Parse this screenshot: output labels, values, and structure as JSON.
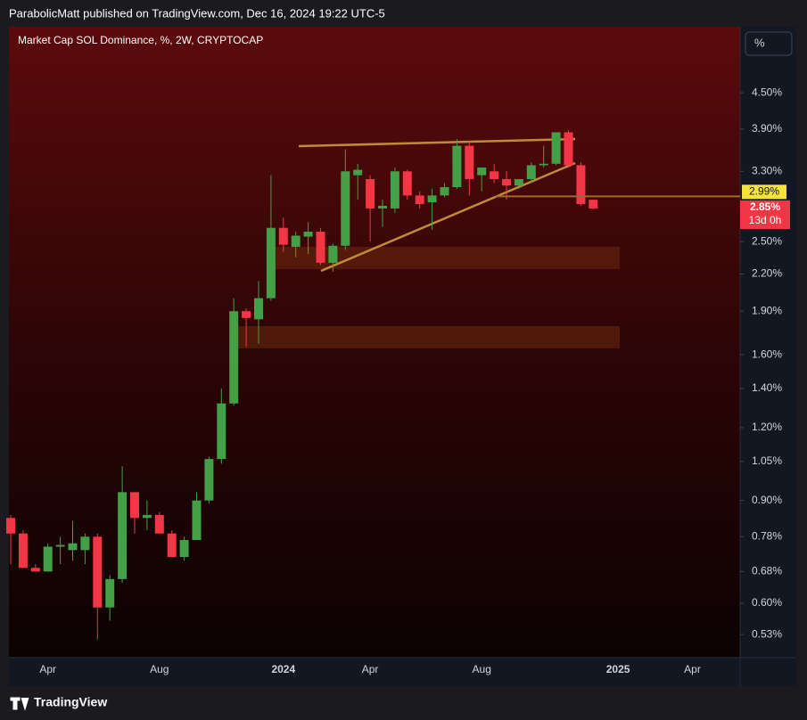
{
  "header": {
    "text": "ParabolicMatt published on TradingView.com, Dec 16, 2024 19:22 UTC-5"
  },
  "toolbar": {
    "scale_button": "%"
  },
  "footer": {
    "brand": "TradingView"
  },
  "chart_data": {
    "type": "candlestick",
    "title": "Market Cap SOL Dominance, %, 2W, CRYPTOCAP",
    "log_scale": true,
    "up_color": "#43a047",
    "down_color": "#f23645",
    "ylim": [
      0.484,
      5.84
    ],
    "yticks": [
      {
        "value": 0.53,
        "label": "0.53%"
      },
      {
        "value": 0.6,
        "label": "0.60%"
      },
      {
        "value": 0.68,
        "label": "0.68%"
      },
      {
        "value": 0.78,
        "label": "0.78%"
      },
      {
        "value": 0.9,
        "label": "0.90%"
      },
      {
        "value": 1.05,
        "label": "1.05%"
      },
      {
        "value": 1.2,
        "label": "1.20%"
      },
      {
        "value": 1.4,
        "label": "1.40%"
      },
      {
        "value": 1.6,
        "label": "1.60%"
      },
      {
        "value": 1.9,
        "label": "1.90%"
      },
      {
        "value": 2.2,
        "label": "2.20%"
      },
      {
        "value": 2.5,
        "label": "2.50%"
      },
      {
        "value": 3.3,
        "label": "3.30%"
      },
      {
        "value": 3.9,
        "label": "3.90%"
      },
      {
        "value": 4.5,
        "label": "4.50%"
      }
    ],
    "categories": [
      null,
      null,
      null,
      "Apr",
      null,
      null,
      null,
      null,
      null,
      null,
      null,
      null,
      "Aug",
      null,
      null,
      null,
      null,
      null,
      null,
      null,
      null,
      null,
      "2024",
      null,
      null,
      null,
      null,
      null,
      null,
      "Apr",
      null,
      null,
      null,
      null,
      null,
      null,
      null,
      null,
      "Aug",
      null,
      null,
      null,
      null,
      null,
      null,
      null,
      null,
      null,
      null,
      "2025",
      null,
      null,
      null,
      null,
      null,
      "Apr",
      null,
      null,
      null
    ],
    "open": [
      0.84,
      0.79,
      0.69,
      0.68,
      0.75,
      0.74,
      0.74,
      0.78,
      0.59,
      0.66,
      0.93,
      0.84,
      0.85,
      0.79,
      0.72,
      0.77,
      0.9,
      1.06,
      1.32,
      1.9,
      1.84,
      2.0,
      2.64,
      2.45,
      2.55,
      2.6,
      2.3,
      2.46,
      3.25,
      3.2,
      2.85,
      2.85,
      3.3,
      3.0,
      2.92,
      3.0,
      3.1,
      3.65,
      3.25,
      3.3,
      3.2,
      3.12,
      3.2,
      3.38,
      3.4,
      3.85,
      3.38,
      2.95,
      null,
      null,
      null,
      null,
      null,
      null,
      null,
      null,
      null,
      null,
      null
    ],
    "high": [
      0.85,
      0.8,
      0.7,
      0.76,
      0.78,
      0.83,
      0.79,
      0.79,
      0.67,
      1.03,
      0.93,
      0.9,
      0.86,
      0.8,
      0.78,
      0.93,
      1.07,
      1.4,
      2.0,
      1.92,
      2.14,
      3.25,
      2.75,
      2.6,
      2.7,
      2.64,
      2.48,
      3.6,
      3.4,
      3.25,
      2.95,
      3.35,
      3.32,
      3.05,
      3.08,
      3.15,
      3.75,
      3.72,
      3.35,
      3.4,
      3.3,
      3.2,
      3.42,
      3.65,
      3.85,
      3.88,
      3.42,
      2.95,
      null,
      null,
      null,
      null,
      null,
      null,
      null,
      null,
      null,
      null,
      null
    ],
    "low": [
      0.7,
      0.69,
      0.68,
      0.68,
      0.7,
      0.71,
      0.7,
      0.52,
      0.56,
      0.65,
      0.79,
      0.8,
      0.79,
      0.72,
      0.71,
      0.77,
      0.89,
      1.04,
      1.31,
      1.65,
      1.67,
      1.98,
      2.4,
      2.35,
      2.38,
      2.28,
      2.22,
      2.42,
      2.95,
      2.5,
      2.65,
      2.8,
      2.95,
      2.85,
      2.62,
      2.98,
      3.08,
      3.0,
      3.05,
      3.15,
      2.95,
      3.08,
      3.15,
      3.35,
      3.38,
      3.35,
      2.88,
      2.84,
      null,
      null,
      null,
      null,
      null,
      null,
      null,
      null,
      null,
      null,
      null
    ],
    "close": [
      0.79,
      0.69,
      0.68,
      0.75,
      0.755,
      0.76,
      0.78,
      0.59,
      0.66,
      0.93,
      0.84,
      0.85,
      0.79,
      0.72,
      0.77,
      0.9,
      1.06,
      1.32,
      1.9,
      1.85,
      2.0,
      2.64,
      2.47,
      2.56,
      2.6,
      2.3,
      2.46,
      3.3,
      3.32,
      2.85,
      2.88,
      3.3,
      3.0,
      2.9,
      3.0,
      3.1,
      3.65,
      3.2,
      3.35,
      3.2,
      3.12,
      3.2,
      3.38,
      3.4,
      3.85,
      3.38,
      2.9,
      2.85,
      null,
      null,
      null,
      null,
      null,
      null,
      null,
      null,
      null,
      null,
      null
    ],
    "marked_level": {
      "value": 2.99,
      "label": "2.99%"
    },
    "last_price": {
      "value": 2.85,
      "label": "2.85%"
    },
    "countdown": "13d 0h"
  }
}
